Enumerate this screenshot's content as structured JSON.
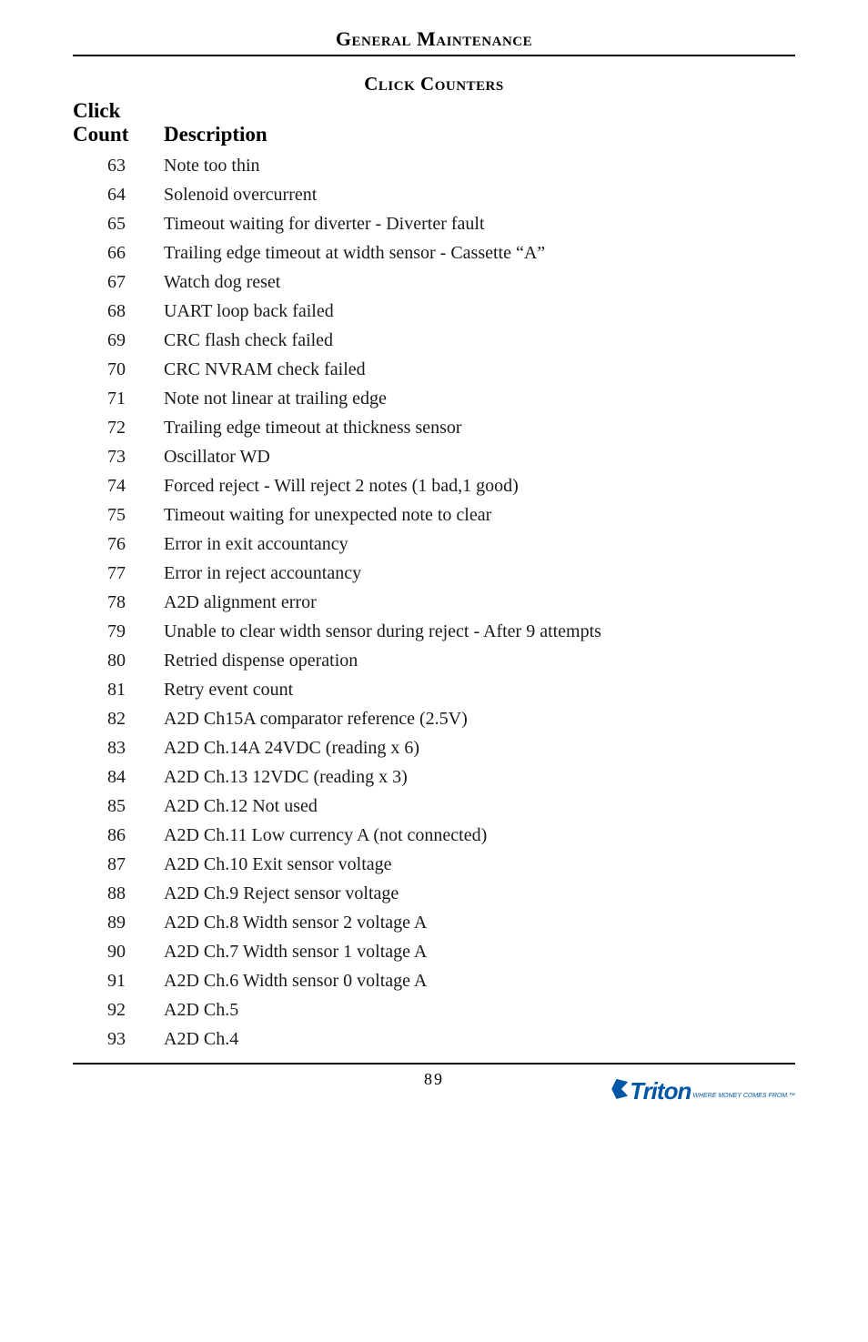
{
  "header": {
    "chapter_title": "General Maintenance",
    "section_title": "Click Counters"
  },
  "columns": {
    "count_label_line1": "Click",
    "count_label_line2": "Count",
    "desc_label": "Description"
  },
  "rows": [
    {
      "count": "63",
      "desc": "Note too thin"
    },
    {
      "count": "64",
      "desc": "Solenoid overcurrent"
    },
    {
      "count": "65",
      "desc": "Timeout waiting for diverter - Diverter fault"
    },
    {
      "count": "66",
      "desc": "Trailing edge timeout at width sensor - Cassette “A”"
    },
    {
      "count": "67",
      "desc": "Watch dog reset"
    },
    {
      "count": "68",
      "desc": "UART loop back failed"
    },
    {
      "count": "69",
      "desc": "CRC flash check failed"
    },
    {
      "count": "70",
      "desc": "CRC NVRAM check failed"
    },
    {
      "count": "71",
      "desc": "Note not linear at trailing edge"
    },
    {
      "count": "72",
      "desc": "Trailing edge timeout at thickness sensor"
    },
    {
      "count": "73",
      "desc": "Oscillator WD"
    },
    {
      "count": "74",
      "desc": "Forced reject - Will reject 2 notes (1 bad,1 good)"
    },
    {
      "count": "75",
      "desc": "Timeout waiting for unexpected note to clear"
    },
    {
      "count": "76",
      "desc": "Error in exit accountancy"
    },
    {
      "count": "77",
      "desc": "Error in reject accountancy"
    },
    {
      "count": "78",
      "desc": "A2D alignment error"
    },
    {
      "count": "79",
      "desc": "Unable to clear width sensor during reject - After 9 attempts"
    },
    {
      "count": "80",
      "desc": "Retried dispense operation"
    },
    {
      "count": "81",
      "desc": "Retry event count"
    },
    {
      "count": "82",
      "desc": "A2D Ch15A comparator reference (2.5V)"
    },
    {
      "count": "83",
      "desc": "A2D Ch.14A 24VDC (reading x 6)"
    },
    {
      "count": "84",
      "desc": "A2D Ch.13 12VDC (reading x 3)"
    },
    {
      "count": "85",
      "desc": "A2D Ch.12 Not used"
    },
    {
      "count": "86",
      "desc": "A2D Ch.11 Low currency A  (not connected)"
    },
    {
      "count": "87",
      "desc": "A2D Ch.10 Exit sensor voltage"
    },
    {
      "count": "88",
      "desc": "A2D Ch.9 Reject sensor voltage"
    },
    {
      "count": "89",
      "desc": "A2D Ch.8 Width sensor 2 voltage A"
    },
    {
      "count": "90",
      "desc": "A2D Ch.7 Width sensor 1 voltage A"
    },
    {
      "count": "91",
      "desc": "A2D Ch.6 Width sensor 0 voltage A"
    },
    {
      "count": "92",
      "desc": "A2D Ch.5"
    },
    {
      "count": "93",
      "desc": "A2D Ch.4"
    }
  ],
  "footer": {
    "page_number": "89",
    "logo_text": "Triton",
    "logo_tagline": "WHERE MONEY COMES FROM.™"
  }
}
